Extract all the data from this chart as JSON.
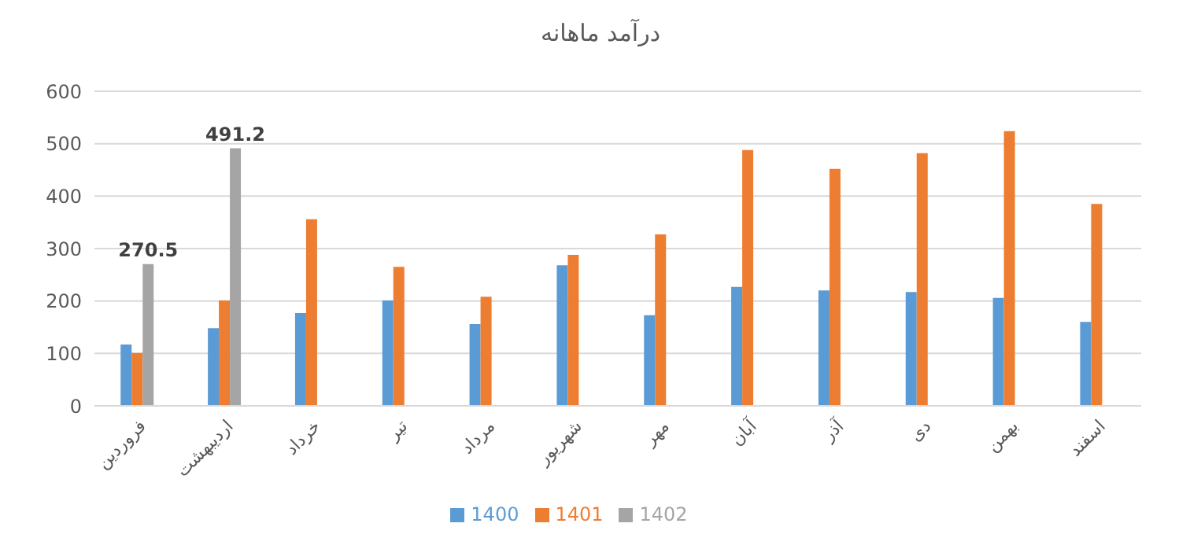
{
  "chart_data": {
    "type": "bar",
    "title": "درآمد ماهانه",
    "categories": [
      "فروردین",
      "اردیبهشت",
      "خرداد",
      "تیر",
      "مرداد",
      "شهریور",
      "مهر",
      "آبان",
      "آذر",
      "دی",
      "بهمن",
      "اسفند"
    ],
    "series": [
      {
        "name": "1400",
        "color": "#5b9bd5",
        "values": [
          117,
          148,
          177,
          201,
          156,
          268,
          173,
          227,
          220,
          217,
          206,
          160
        ]
      },
      {
        "name": "1401",
        "color": "#ed7d31",
        "values": [
          101,
          201,
          356,
          265,
          208,
          288,
          327,
          488,
          452,
          482,
          524,
          385
        ]
      },
      {
        "name": "1402",
        "color": "#a5a5a5",
        "values": [
          270.5,
          491.2,
          null,
          null,
          null,
          null,
          null,
          null,
          null,
          null,
          null,
          null
        ],
        "value_labels": [
          "270.5",
          "491.2",
          null,
          null,
          null,
          null,
          null,
          null,
          null,
          null,
          null,
          null
        ]
      }
    ],
    "ylim": [
      0,
      600
    ],
    "yticks": [
      0,
      100,
      200,
      300,
      400,
      500,
      600
    ],
    "grid": "y",
    "legend": "bottom"
  }
}
